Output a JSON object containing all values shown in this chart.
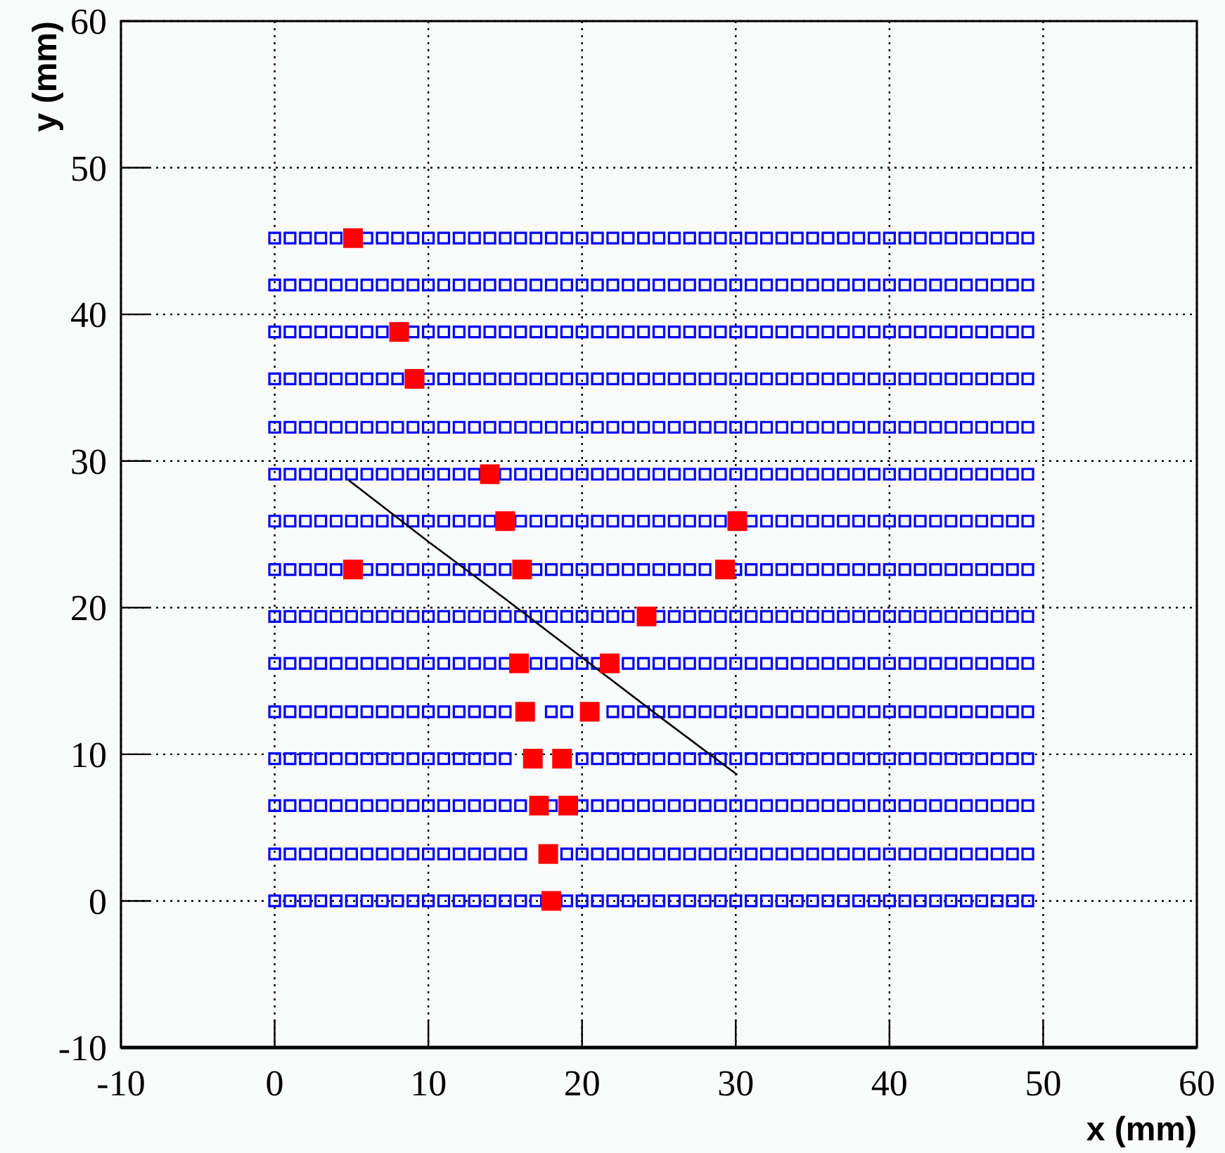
{
  "chart_data": {
    "type": "scatter",
    "xlabel": "x (mm)",
    "ylabel": "y (mm)",
    "xlim": [
      -10,
      60
    ],
    "ylim": [
      -10,
      60
    ],
    "xticks": [
      -10,
      0,
      10,
      20,
      30,
      40,
      50,
      60
    ],
    "yticks": [
      -10,
      0,
      10,
      20,
      30,
      40,
      50,
      60
    ],
    "grid": true,
    "marker": "square",
    "x": [
      0,
      1,
      2,
      3,
      4,
      5,
      6,
      7,
      8,
      9,
      10,
      11,
      12,
      13,
      14,
      15,
      16,
      17,
      18,
      19,
      20,
      21,
      22,
      23,
      24,
      25,
      26,
      27,
      28,
      29,
      30,
      31,
      32,
      33,
      34,
      35,
      36,
      37,
      38,
      39,
      40,
      41,
      42,
      43,
      44,
      45,
      46,
      47,
      48,
      49
    ],
    "series": [
      {
        "color": "#0000ff",
        "values": [
          0,
          0,
          0,
          0,
          0,
          0,
          0,
          0,
          0,
          0,
          0,
          0,
          0,
          0,
          0,
          0,
          0,
          0,
          null,
          0,
          0,
          0,
          0,
          0,
          0,
          0,
          0,
          0,
          0,
          0,
          0,
          0,
          0,
          0,
          0,
          0,
          0,
          0,
          0,
          0,
          0,
          0,
          0,
          0,
          0,
          0,
          0,
          0,
          0,
          0
        ]
      },
      {
        "color": "#0000ff",
        "values": [
          3.2,
          3.2,
          3.2,
          3.2,
          3.2,
          3.2,
          3.2,
          3.2,
          3.2,
          3.2,
          3.2,
          3.2,
          3.2,
          3.2,
          3.2,
          3.2,
          3.2,
          null,
          null,
          3.2,
          3.2,
          3.2,
          3.2,
          3.2,
          3.2,
          3.2,
          3.2,
          3.2,
          3.2,
          3.2,
          3.2,
          3.2,
          3.2,
          3.2,
          3.2,
          3.2,
          3.2,
          3.2,
          3.2,
          3.2,
          3.2,
          3.2,
          3.2,
          3.2,
          3.2,
          3.2,
          3.2,
          3.2,
          3.2,
          3.2
        ]
      },
      {
        "color": "#0000ff",
        "values": [
          6.5,
          6.5,
          6.5,
          6.5,
          6.5,
          6.5,
          6.5,
          6.5,
          6.5,
          6.5,
          6.5,
          6.5,
          6.5,
          6.5,
          6.5,
          6.5,
          6.5,
          null,
          6.5,
          null,
          6.5,
          6.5,
          6.5,
          6.5,
          6.5,
          6.5,
          6.5,
          6.5,
          6.5,
          6.5,
          6.5,
          6.5,
          6.5,
          6.5,
          6.5,
          6.5,
          6.5,
          6.5,
          6.5,
          6.5,
          6.5,
          6.5,
          6.5,
          6.5,
          6.5,
          6.5,
          6.5,
          6.5,
          6.5,
          6.5
        ]
      },
      {
        "color": "#0000ff",
        "values": [
          9.7,
          9.7,
          9.7,
          9.7,
          9.7,
          9.7,
          9.7,
          9.7,
          9.7,
          9.7,
          9.7,
          9.7,
          9.7,
          9.7,
          9.7,
          9.7,
          null,
          null,
          null,
          null,
          9.7,
          9.7,
          9.7,
          9.7,
          9.7,
          9.7,
          9.7,
          9.7,
          9.7,
          9.7,
          9.7,
          9.7,
          9.7,
          9.7,
          9.7,
          9.7,
          9.7,
          9.7,
          9.7,
          9.7,
          9.7,
          9.7,
          9.7,
          9.7,
          9.7,
          9.7,
          9.7,
          9.7,
          9.7,
          9.7
        ]
      },
      {
        "color": "#0000ff",
        "values": [
          12.9,
          12.9,
          12.9,
          12.9,
          12.9,
          12.9,
          12.9,
          12.9,
          12.9,
          12.9,
          12.9,
          12.9,
          12.9,
          12.9,
          12.9,
          12.9,
          null,
          null,
          12.9,
          12.9,
          null,
          null,
          12.9,
          12.9,
          12.9,
          12.9,
          12.9,
          12.9,
          12.9,
          12.9,
          12.9,
          12.9,
          12.9,
          12.9,
          12.9,
          12.9,
          12.9,
          12.9,
          12.9,
          12.9,
          12.9,
          12.9,
          12.9,
          12.9,
          12.9,
          12.9,
          12.9,
          12.9,
          12.9,
          12.9
        ]
      },
      {
        "color": "#0000ff",
        "values": [
          16.2,
          16.2,
          16.2,
          16.2,
          16.2,
          16.2,
          16.2,
          16.2,
          16.2,
          16.2,
          16.2,
          16.2,
          16.2,
          16.2,
          16.2,
          16.2,
          null,
          16.2,
          16.2,
          16.2,
          16.2,
          16.2,
          null,
          16.2,
          16.2,
          16.2,
          16.2,
          16.2,
          16.2,
          16.2,
          16.2,
          16.2,
          16.2,
          16.2,
          16.2,
          16.2,
          16.2,
          16.2,
          16.2,
          16.2,
          16.2,
          16.2,
          16.2,
          16.2,
          16.2,
          16.2,
          16.2,
          16.2,
          16.2,
          16.2
        ]
      },
      {
        "color": "#0000ff",
        "values": [
          19.4,
          19.4,
          19.4,
          19.4,
          19.4,
          19.4,
          19.4,
          19.4,
          19.4,
          19.4,
          19.4,
          19.4,
          19.4,
          19.4,
          19.4,
          19.4,
          19.4,
          19.4,
          19.4,
          19.4,
          19.4,
          19.4,
          19.4,
          19.4,
          null,
          19.4,
          19.4,
          19.4,
          19.4,
          19.4,
          19.4,
          19.4,
          19.4,
          19.4,
          19.4,
          19.4,
          19.4,
          19.4,
          19.4,
          19.4,
          19.4,
          19.4,
          19.4,
          19.4,
          19.4,
          19.4,
          19.4,
          19.4,
          19.4,
          19.4
        ]
      },
      {
        "color": "#0000ff",
        "values": [
          22.6,
          22.6,
          22.6,
          22.6,
          22.6,
          null,
          22.6,
          22.6,
          22.6,
          22.6,
          22.6,
          22.6,
          22.6,
          22.6,
          22.6,
          22.6,
          null,
          22.6,
          22.6,
          22.6,
          22.6,
          22.6,
          22.6,
          22.6,
          22.6,
          22.6,
          22.6,
          22.6,
          22.6,
          null,
          22.6,
          22.6,
          22.6,
          22.6,
          22.6,
          22.6,
          22.6,
          22.6,
          22.6,
          22.6,
          22.6,
          22.6,
          22.6,
          22.6,
          22.6,
          22.6,
          22.6,
          22.6,
          22.6,
          22.6
        ]
      },
      {
        "color": "#0000ff",
        "values": [
          25.9,
          25.9,
          25.9,
          25.9,
          25.9,
          25.9,
          25.9,
          25.9,
          25.9,
          25.9,
          25.9,
          25.9,
          25.9,
          25.9,
          25.9,
          null,
          25.9,
          25.9,
          25.9,
          25.9,
          25.9,
          25.9,
          25.9,
          25.9,
          25.9,
          25.9,
          25.9,
          25.9,
          25.9,
          25.9,
          null,
          25.9,
          25.9,
          25.9,
          25.9,
          25.9,
          25.9,
          25.9,
          25.9,
          25.9,
          25.9,
          25.9,
          25.9,
          25.9,
          25.9,
          25.9,
          25.9,
          25.9,
          25.9,
          25.9
        ]
      },
      {
        "color": "#0000ff",
        "values": [
          29.1,
          29.1,
          29.1,
          29.1,
          29.1,
          29.1,
          29.1,
          29.1,
          29.1,
          29.1,
          29.1,
          29.1,
          29.1,
          29.1,
          null,
          29.1,
          29.1,
          29.1,
          29.1,
          29.1,
          29.1,
          29.1,
          29.1,
          29.1,
          29.1,
          29.1,
          29.1,
          29.1,
          29.1,
          29.1,
          29.1,
          29.1,
          29.1,
          29.1,
          29.1,
          29.1,
          29.1,
          29.1,
          29.1,
          29.1,
          29.1,
          29.1,
          29.1,
          29.1,
          29.1,
          29.1,
          29.1,
          29.1,
          29.1,
          29.1
        ]
      },
      {
        "color": "#0000ff",
        "values": [
          32.3,
          32.3,
          32.3,
          32.3,
          32.3,
          32.3,
          32.3,
          32.3,
          32.3,
          32.3,
          32.3,
          32.3,
          32.3,
          32.3,
          32.3,
          32.3,
          32.3,
          32.3,
          32.3,
          32.3,
          32.3,
          32.3,
          32.3,
          32.3,
          32.3,
          32.3,
          32.3,
          32.3,
          32.3,
          32.3,
          32.3,
          32.3,
          32.3,
          32.3,
          32.3,
          32.3,
          32.3,
          32.3,
          32.3,
          32.3,
          32.3,
          32.3,
          32.3,
          32.3,
          32.3,
          32.3,
          32.3,
          32.3,
          32.3,
          32.3
        ]
      },
      {
        "color": "#0000ff",
        "values": [
          35.6,
          35.6,
          35.6,
          35.6,
          35.6,
          35.6,
          35.6,
          35.6,
          35.6,
          null,
          35.6,
          35.6,
          35.6,
          35.6,
          35.6,
          35.6,
          35.6,
          35.6,
          35.6,
          35.6,
          35.6,
          35.6,
          35.6,
          35.6,
          35.6,
          35.6,
          35.6,
          35.6,
          35.6,
          35.6,
          35.6,
          35.6,
          35.6,
          35.6,
          35.6,
          35.6,
          35.6,
          35.6,
          35.6,
          35.6,
          35.6,
          35.6,
          35.6,
          35.6,
          35.6,
          35.6,
          35.6,
          35.6,
          35.6,
          35.6
        ]
      },
      {
        "color": "#0000ff",
        "values": [
          38.8,
          38.8,
          38.8,
          38.8,
          38.8,
          38.8,
          38.8,
          38.8,
          null,
          38.8,
          38.8,
          38.8,
          38.8,
          38.8,
          38.8,
          38.8,
          38.8,
          38.8,
          38.8,
          38.8,
          38.8,
          38.8,
          38.8,
          38.8,
          38.8,
          38.8,
          38.8,
          38.8,
          38.8,
          38.8,
          38.8,
          38.8,
          38.8,
          38.8,
          38.8,
          38.8,
          38.8,
          38.8,
          38.8,
          38.8,
          38.8,
          38.8,
          38.8,
          38.8,
          38.8,
          38.8,
          38.8,
          38.8,
          38.8,
          38.8
        ]
      },
      {
        "color": "#0000ff",
        "values": [
          42,
          42,
          42,
          42,
          42,
          42,
          42,
          42,
          42,
          42,
          42,
          42,
          42,
          42,
          42,
          42,
          42,
          42,
          42,
          42,
          42,
          42,
          42,
          42,
          42,
          42,
          42,
          42,
          42,
          42,
          42,
          42,
          42,
          42,
          42,
          42,
          42,
          42,
          42,
          42,
          42,
          42,
          42,
          42,
          42,
          42,
          42,
          42,
          42,
          42
        ]
      },
      {
        "color": "#0000ff",
        "values": [
          45.2,
          45.2,
          45.2,
          45.2,
          45.2,
          null,
          45.2,
          45.2,
          45.2,
          45.2,
          45.2,
          45.2,
          45.2,
          45.2,
          45.2,
          45.2,
          45.2,
          45.2,
          45.2,
          45.2,
          45.2,
          45.2,
          45.2,
          45.2,
          45.2,
          45.2,
          45.2,
          45.2,
          45.2,
          45.2,
          45.2,
          45.2,
          45.2,
          45.2,
          45.2,
          45.2,
          45.2,
          45.2,
          45.2,
          45.2,
          45.2,
          45.2,
          45.2,
          45.2,
          45.2,
          45.2,
          45.2,
          45.2,
          45.2,
          45.2
        ]
      },
      {
        "type": "line",
        "color": "#000000",
        "marker": "none",
        "x": [
          4.8,
          10,
          15,
          20,
          25,
          30.1
        ],
        "values": [
          28.7,
          24.5,
          20.6,
          16.6,
          12.6,
          8.6
        ]
      },
      {
        "color": "#ff0000",
        "x": [
          5.1,
          8.1,
          9.1,
          14.0,
          15.0,
          30.1,
          5.1,
          16.1,
          29.3,
          24.2,
          15.9,
          21.8,
          16.3,
          20.5,
          16.8,
          18.7,
          17.2,
          19.1,
          17.8,
          18.0
        ],
        "values": [
          45.2,
          38.8,
          35.6,
          29.1,
          25.9,
          25.9,
          22.6,
          22.6,
          22.6,
          19.4,
          16.2,
          16.2,
          12.9,
          12.9,
          9.7,
          9.7,
          6.5,
          6.5,
          3.2,
          0
        ]
      }
    ]
  }
}
